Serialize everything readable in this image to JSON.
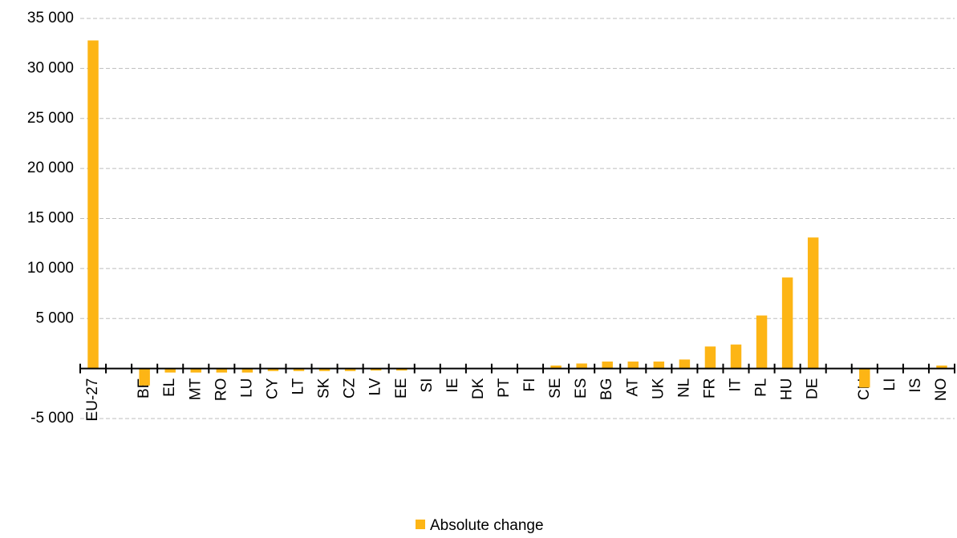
{
  "chart_data": {
    "type": "bar",
    "categories": [
      "EU-27",
      null,
      "BE",
      "EL",
      "MT",
      "RO",
      "LU",
      "CY",
      "LT",
      "SK",
      "CZ",
      "LV",
      "EE",
      "SI",
      "IE",
      "DK",
      "PT",
      "FI",
      "SE",
      "ES",
      "BG",
      "AT",
      "UK",
      "NL",
      "FR",
      "IT",
      "PL",
      "HU",
      "DE",
      null,
      "CH",
      "LI",
      "IS",
      "NO"
    ],
    "series": [
      {
        "name": "Absolute change",
        "color": "#fdb515",
        "values": [
          32800,
          null,
          -1700,
          -400,
          -400,
          -400,
          -400,
          -250,
          -250,
          -250,
          -250,
          -200,
          -200,
          0,
          0,
          0,
          0,
          0,
          300,
          500,
          700,
          700,
          700,
          900,
          2200,
          2400,
          5300,
          9100,
          13100,
          null,
          -1900,
          0,
          0,
          300
        ]
      }
    ],
    "ylim": [
      -5000,
      35000
    ],
    "yticks": [
      {
        "value": -5000,
        "label": "-5 000"
      },
      {
        "value": 5000,
        "label": "5 000"
      },
      {
        "value": 10000,
        "label": "10 000"
      },
      {
        "value": 15000,
        "label": "15 000"
      },
      {
        "value": 20000,
        "label": "20 000"
      },
      {
        "value": 25000,
        "label": "25 000"
      },
      {
        "value": 30000,
        "label": "30 000"
      },
      {
        "value": 35000,
        "label": "35 000"
      }
    ],
    "grid": true,
    "legend": "bottom"
  }
}
